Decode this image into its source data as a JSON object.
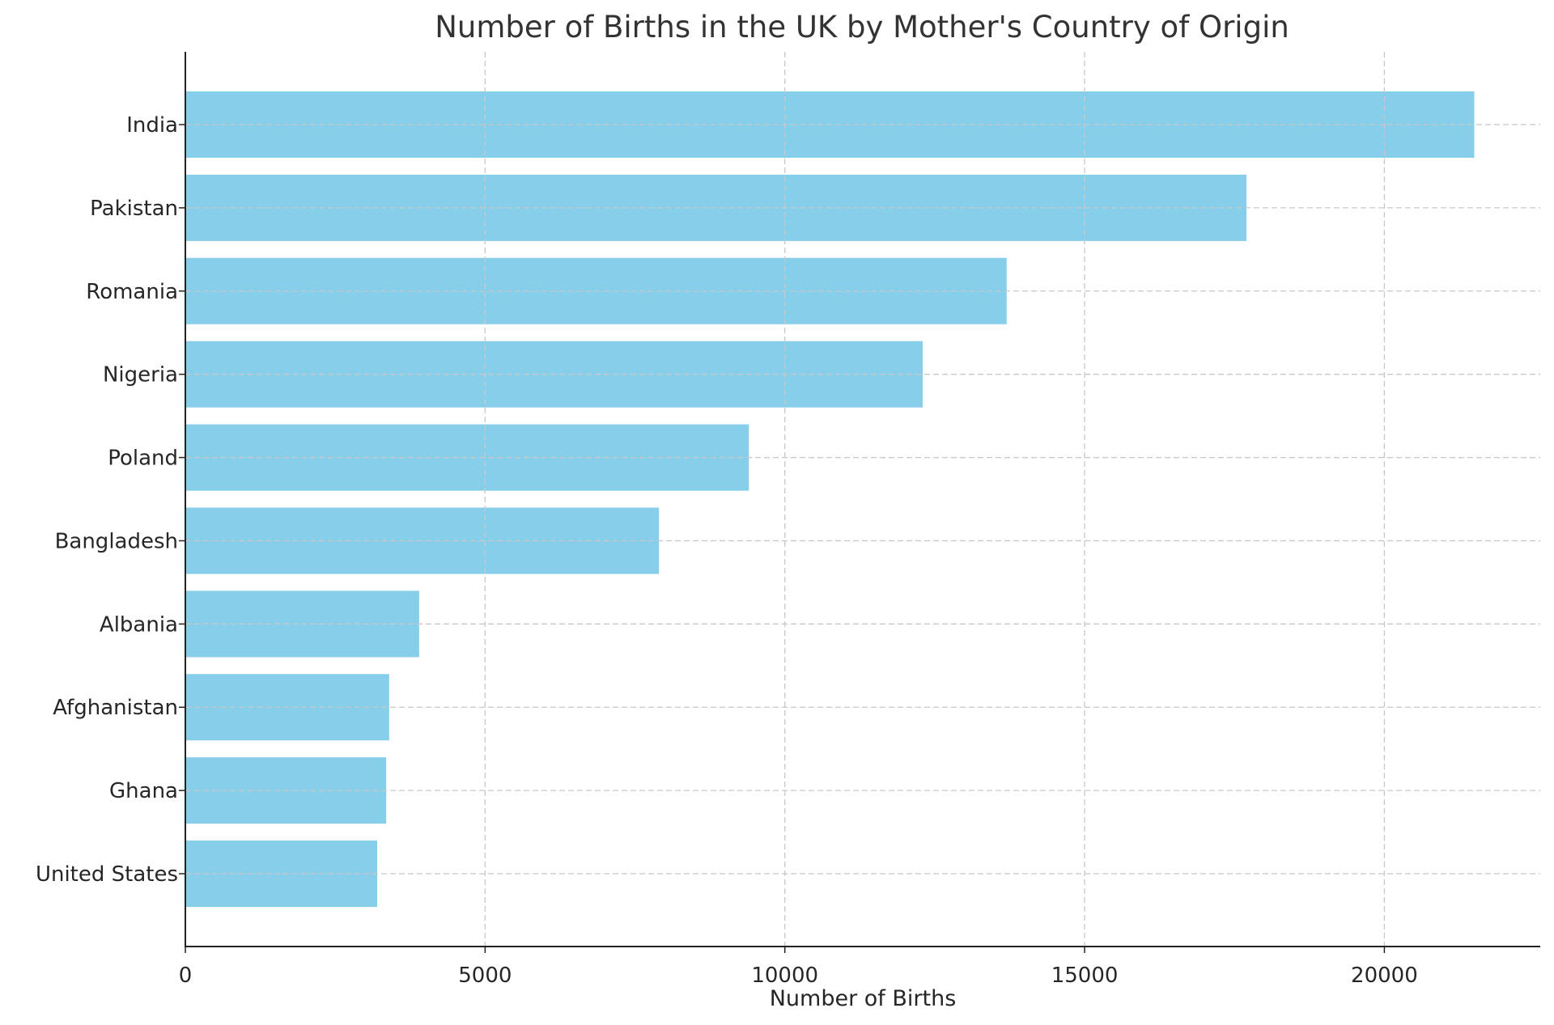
{
  "chart_data": {
    "type": "bar",
    "orientation": "horizontal",
    "title": "Number of Births in the UK by Mother's Country of Origin",
    "xlabel": "Number of Births",
    "ylabel": "",
    "categories": [
      "India",
      "Pakistan",
      "Romania",
      "Nigeria",
      "Poland",
      "Bangladesh",
      "Albania",
      "Afghanistan",
      "Ghana",
      "United States"
    ],
    "values": [
      21500,
      17700,
      13700,
      12300,
      9400,
      7900,
      3900,
      3400,
      3350,
      3200
    ],
    "xlim": [
      0,
      22600
    ],
    "xticks": [
      0,
      5000,
      10000,
      15000,
      20000
    ],
    "xtick_labels": [
      "0",
      "5000",
      "10000",
      "15000",
      "20000"
    ],
    "grid": true,
    "bar_color": "#87CEEB"
  }
}
